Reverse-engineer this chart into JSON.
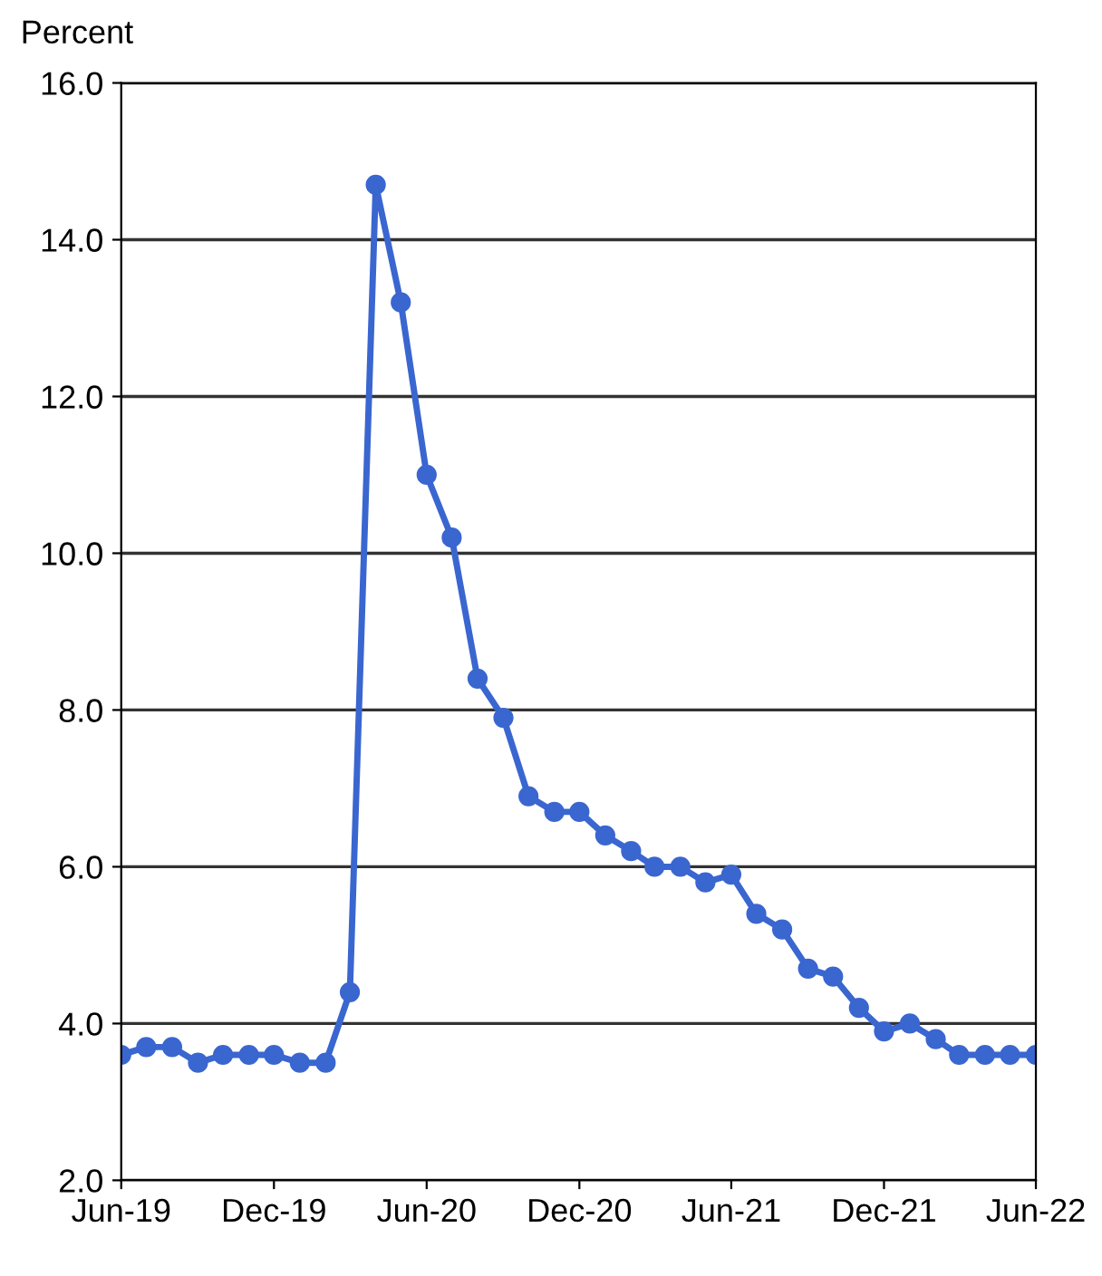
{
  "chart_data": {
    "type": "line",
    "ylabel": "Percent",
    "x": [
      "2019-06",
      "2019-07",
      "2019-08",
      "2019-09",
      "2019-10",
      "2019-11",
      "2019-12",
      "2020-01",
      "2020-02",
      "2020-03",
      "2020-04",
      "2020-05",
      "2020-06",
      "2020-07",
      "2020-08",
      "2020-09",
      "2020-10",
      "2020-11",
      "2020-12",
      "2021-01",
      "2021-02",
      "2021-03",
      "2021-04",
      "2021-05",
      "2021-06",
      "2021-07",
      "2021-08",
      "2021-09",
      "2021-10",
      "2021-11",
      "2021-12",
      "2022-01",
      "2022-02",
      "2022-03",
      "2022-04",
      "2022-05",
      "2022-06"
    ],
    "series": [
      {
        "color": "#3a66d0",
        "values": [
          3.6,
          3.7,
          3.7,
          3.5,
          3.6,
          3.6,
          3.6,
          3.5,
          3.5,
          4.4,
          14.7,
          13.2,
          11.0,
          10.2,
          8.4,
          7.9,
          6.9,
          6.7,
          6.7,
          6.4,
          6.2,
          6.0,
          6.0,
          5.8,
          5.9,
          5.4,
          5.2,
          4.7,
          4.6,
          4.2,
          3.9,
          4.0,
          3.8,
          3.6,
          3.6,
          3.6,
          3.6
        ]
      }
    ],
    "xlim": [
      "2019-06",
      "2022-06"
    ],
    "xticks": [
      {
        "value": "2019-06",
        "label": "Jun-19"
      },
      {
        "value": "2019-12",
        "label": "Dec-19"
      },
      {
        "value": "2020-06",
        "label": "Jun-20"
      },
      {
        "value": "2020-12",
        "label": "Dec-20"
      },
      {
        "value": "2021-06",
        "label": "Jun-21"
      },
      {
        "value": "2021-12",
        "label": "Dec-21"
      },
      {
        "value": "2022-06",
        "label": "Jun-22"
      }
    ],
    "ylim": [
      2.0,
      16.0
    ],
    "yticks": [
      {
        "value": 2,
        "label": "2.0"
      },
      {
        "value": 4,
        "label": "4.0"
      },
      {
        "value": 6,
        "label": "6.0"
      },
      {
        "value": 8,
        "label": "8.0"
      },
      {
        "value": 10,
        "label": "10.0"
      },
      {
        "value": 12,
        "label": "12.0"
      },
      {
        "value": 14,
        "label": "14.0"
      },
      {
        "value": 16,
        "label": "16.0"
      }
    ],
    "grid": "y",
    "marker": "circle",
    "line_style": "solid",
    "legend": false
  }
}
